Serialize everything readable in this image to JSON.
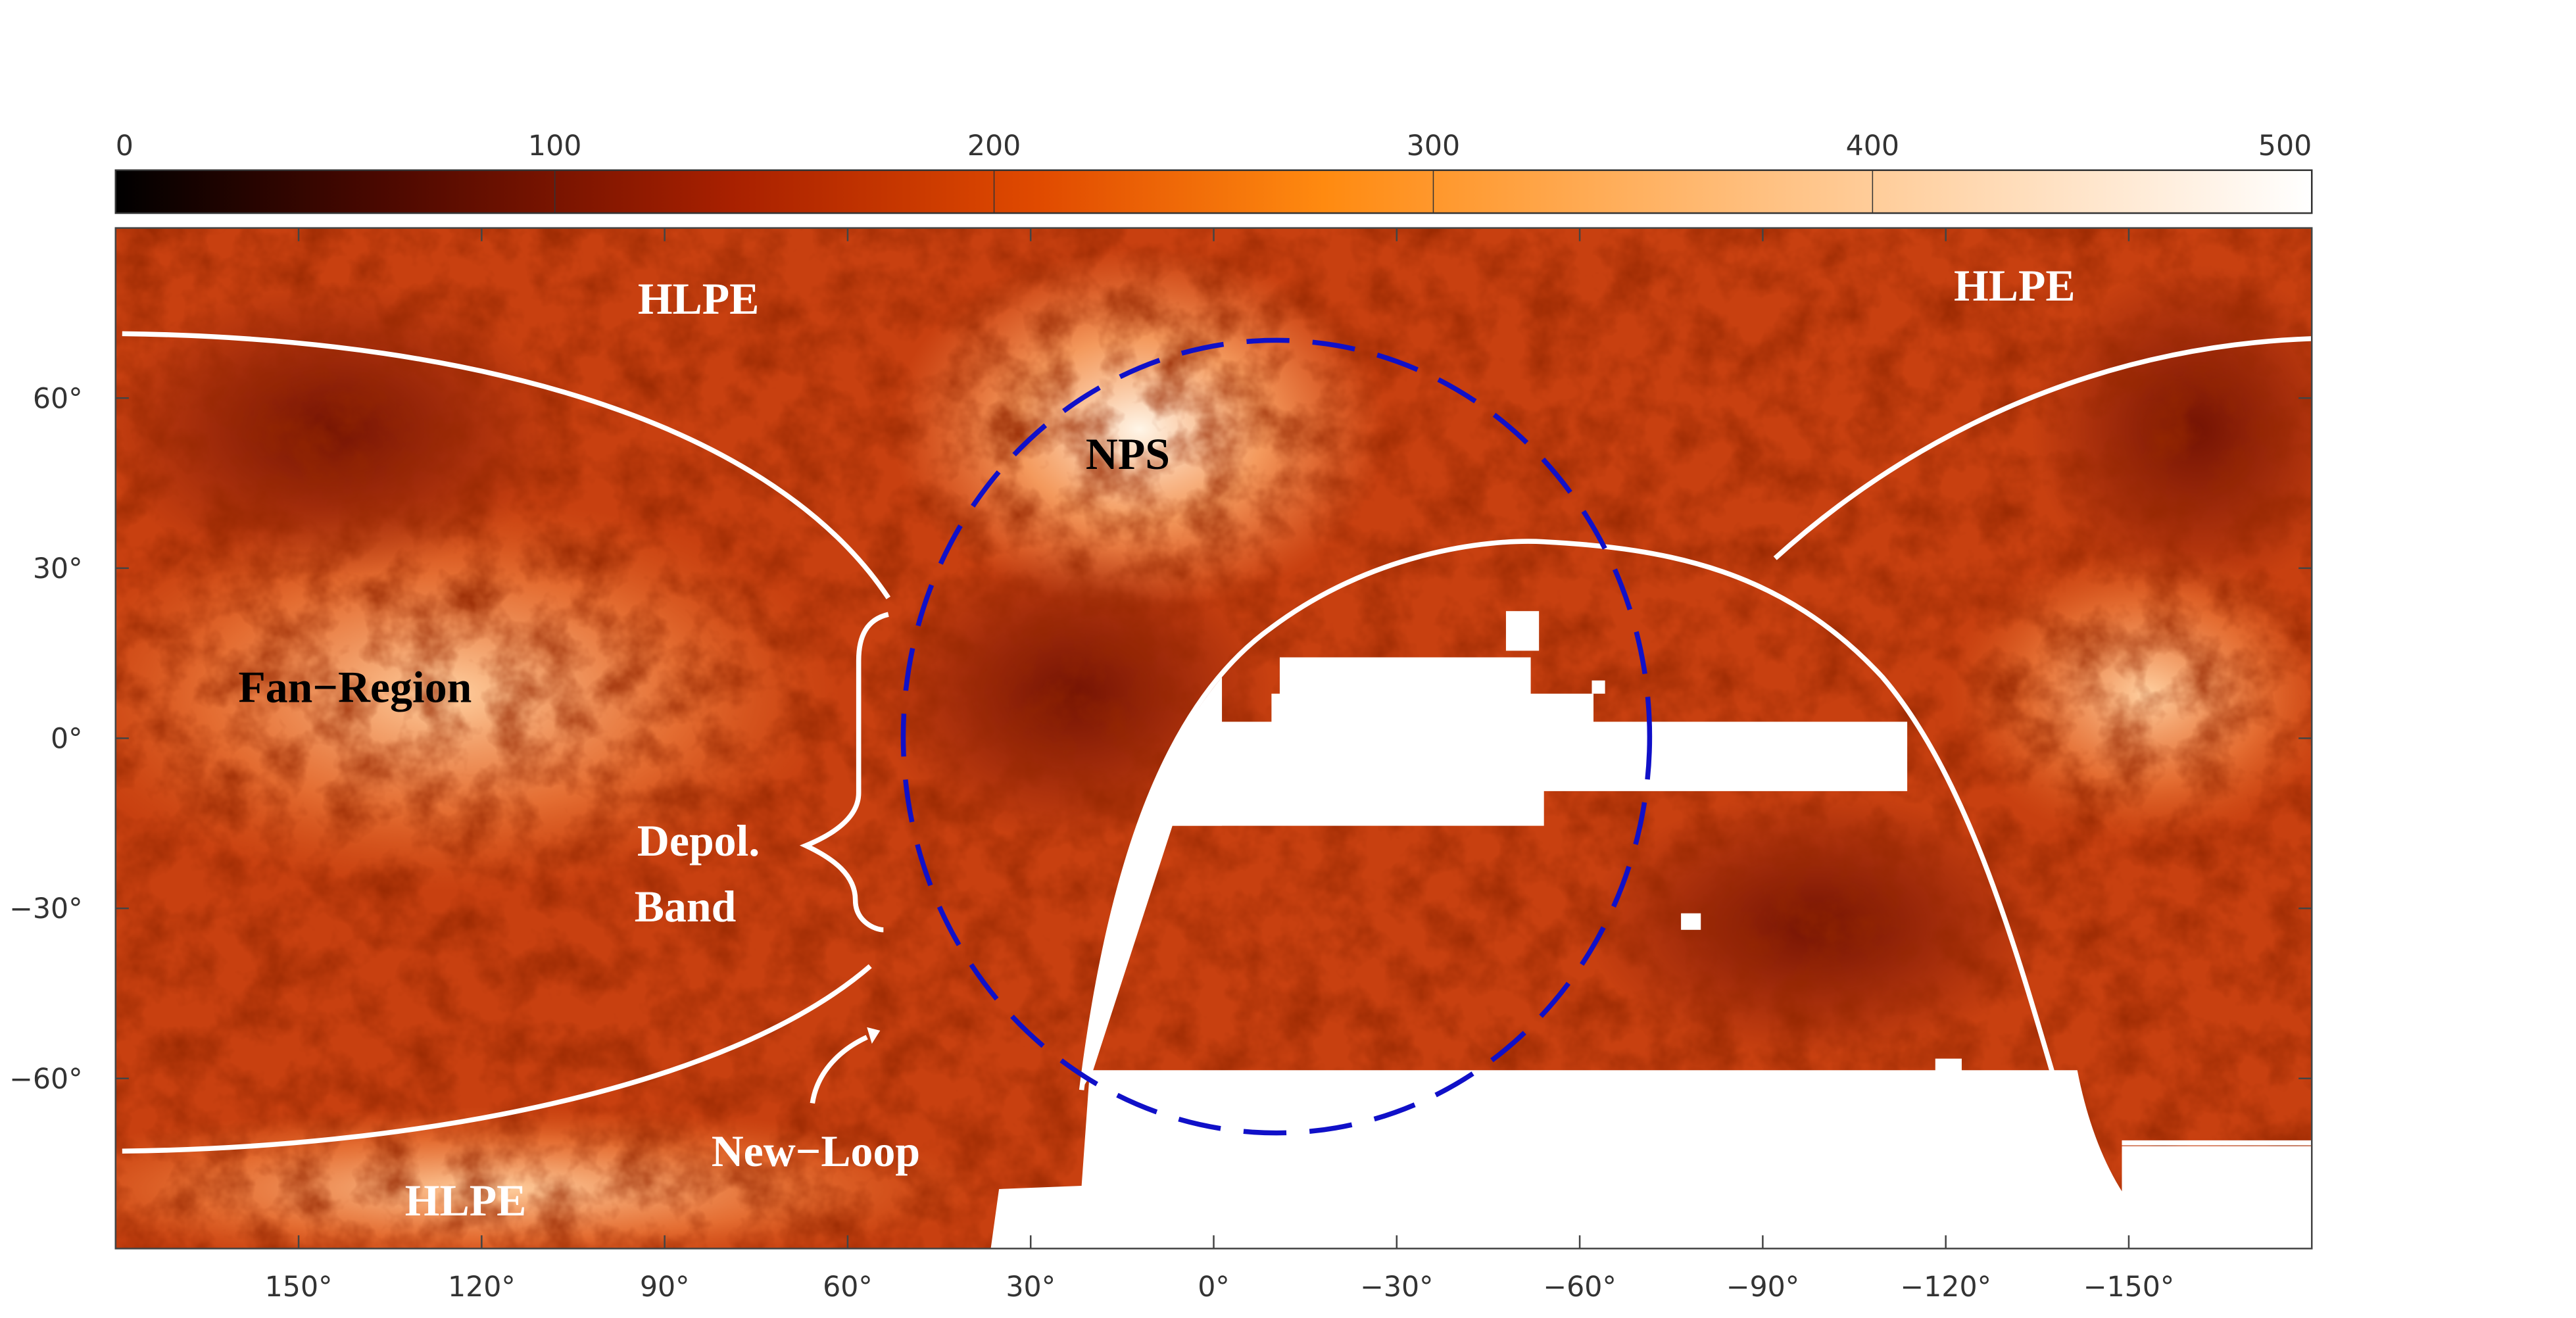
{
  "chart_data": {
    "type": "map",
    "xlim": [
      180,
      -180
    ],
    "ylim": [
      -90,
      90
    ],
    "xticks": [
      {
        "value": 150,
        "label": "150°"
      },
      {
        "value": 120,
        "label": "120°"
      },
      {
        "value": 90,
        "label": "90°"
      },
      {
        "value": 60,
        "label": "60°"
      },
      {
        "value": 30,
        "label": "30°"
      },
      {
        "value": 0,
        "label": "0°"
      },
      {
        "value": -30,
        "label": "−30°"
      },
      {
        "value": -60,
        "label": "−60°"
      },
      {
        "value": -90,
        "label": "−90°"
      },
      {
        "value": -120,
        "label": "−120°"
      },
      {
        "value": -150,
        "label": "−150°"
      }
    ],
    "yticks": [
      {
        "value": 60,
        "label": "60°"
      },
      {
        "value": 30,
        "label": "30°"
      },
      {
        "value": 0,
        "label": "0°"
      },
      {
        "value": -30,
        "label": "−30°"
      },
      {
        "value": -60,
        "label": "−60°"
      }
    ],
    "colorbar": {
      "range": [
        0,
        500
      ],
      "ticks": [
        0,
        100,
        200,
        300,
        400,
        500
      ]
    },
    "annotations": [
      {
        "text": "HLPE",
        "color": "#ffffff"
      },
      {
        "text": "HLPE",
        "color": "#ffffff"
      },
      {
        "text": "NPS",
        "color": "#000000"
      },
      {
        "text": "Fan−Region",
        "color": "#000000"
      },
      {
        "text": "Depol.",
        "color": "#ffffff"
      },
      {
        "text": "Band",
        "color": "#ffffff"
      },
      {
        "text": "New−Loop",
        "color": "#ffffff"
      },
      {
        "text": "HLPE",
        "color": "#ffffff"
      }
    ]
  }
}
